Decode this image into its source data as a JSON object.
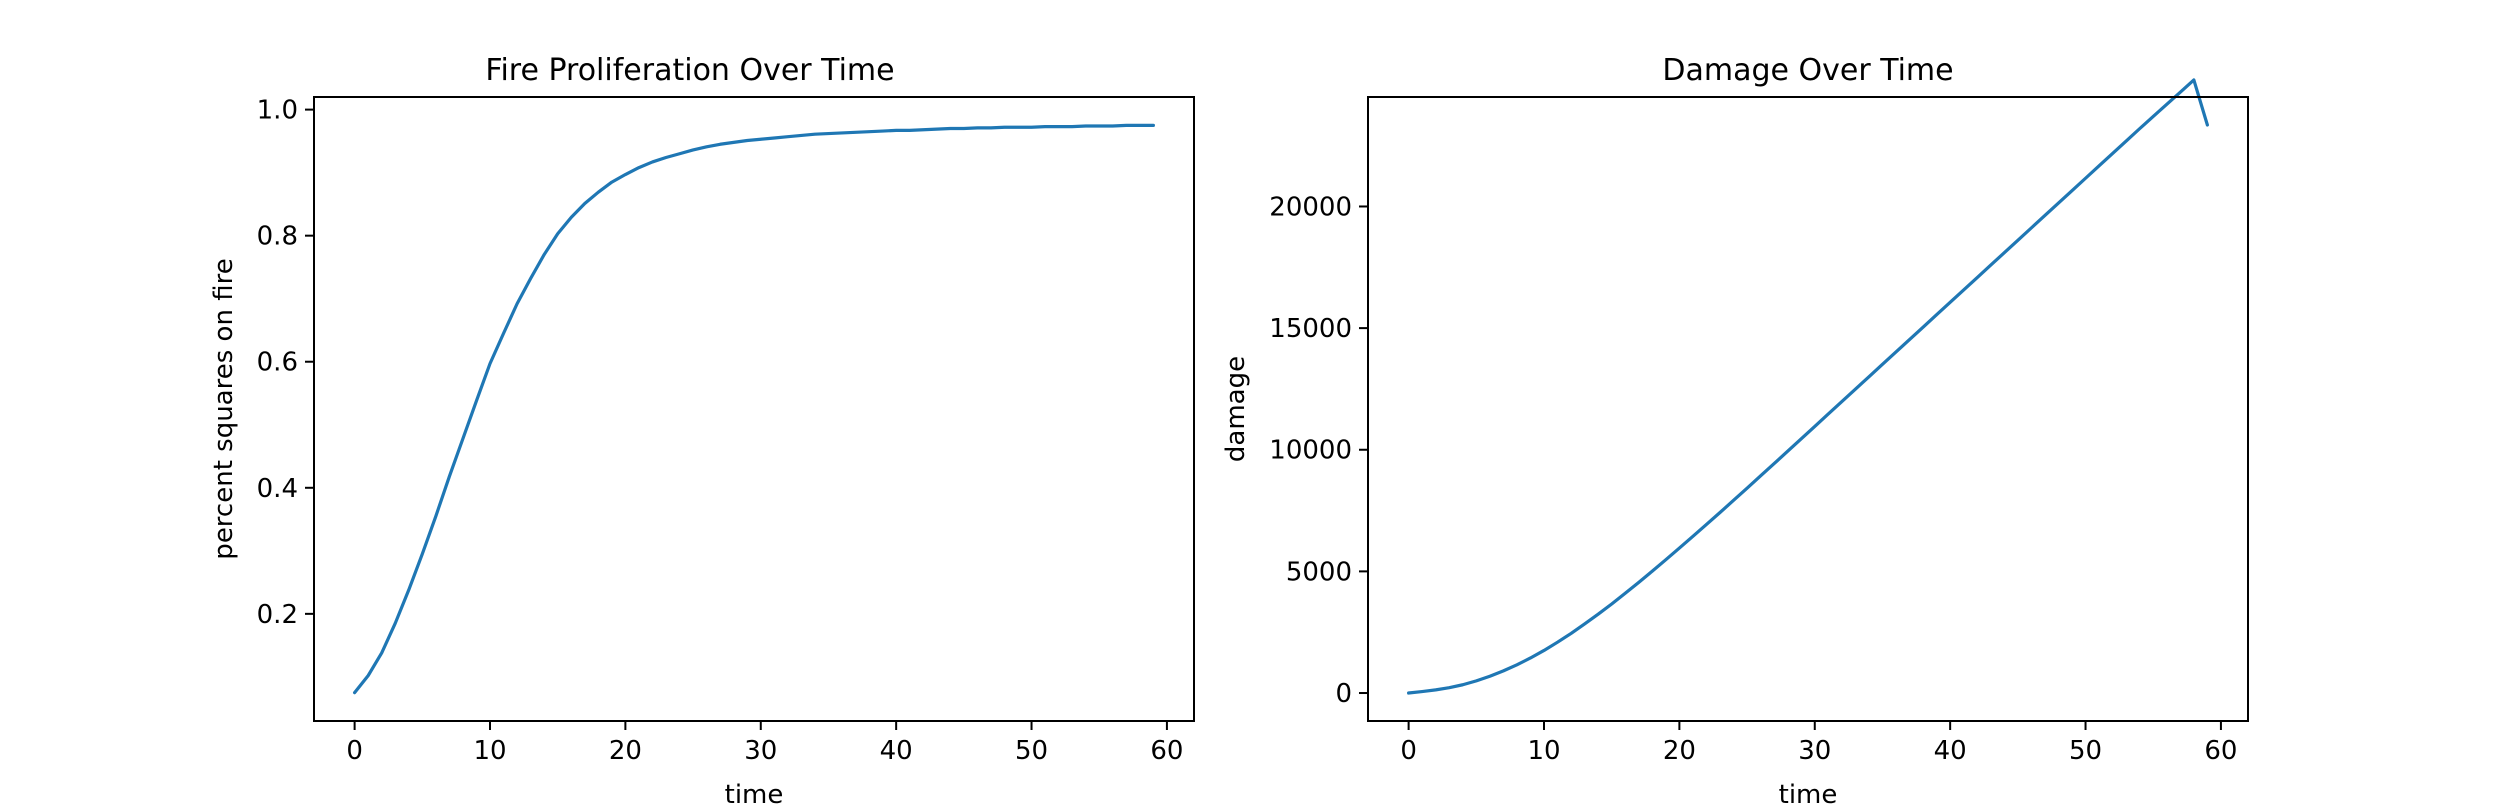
{
  "chart_data": [
    {
      "type": "line",
      "title": "Fire Proliferation Over Time",
      "xlabel": "time",
      "ylabel": "percent squares on fire",
      "xlim": [
        -3,
        62
      ],
      "ylim": [
        0.03,
        1.02
      ],
      "xticks": [
        0,
        10,
        20,
        30,
        40,
        50,
        60
      ],
      "xtick_labels": [
        "0",
        "10",
        "20",
        "30",
        "40",
        "50",
        "60"
      ],
      "yticks": [
        0.2,
        0.4,
        0.6,
        0.8,
        1.0
      ],
      "ytick_labels": [
        "0.2",
        "0.4",
        "0.6",
        "0.8",
        "1.0"
      ],
      "grid": false,
      "line_color": "#1f77b4",
      "series": [
        {
          "x": [
            0,
            1,
            2,
            3,
            4,
            5,
            6,
            7,
            8,
            9,
            10,
            11,
            12,
            13,
            14,
            15,
            16,
            17,
            18,
            19,
            20,
            21,
            22,
            23,
            24,
            25,
            26,
            27,
            28,
            29,
            30,
            31,
            32,
            33,
            34,
            35,
            36,
            37,
            38,
            39,
            40,
            41,
            42,
            43,
            44,
            45,
            46,
            47,
            48,
            49,
            50,
            51,
            52,
            53,
            54,
            55,
            56,
            57,
            58,
            59
          ],
          "values": [
            0.075,
            0.102,
            0.138,
            0.185,
            0.238,
            0.295,
            0.355,
            0.418,
            0.478,
            0.538,
            0.597,
            0.645,
            0.692,
            0.732,
            0.77,
            0.803,
            0.829,
            0.851,
            0.869,
            0.885,
            0.897,
            0.908,
            0.917,
            0.924,
            0.93,
            0.936,
            0.941,
            0.945,
            0.948,
            0.951,
            0.953,
            0.955,
            0.957,
            0.959,
            0.961,
            0.962,
            0.963,
            0.964,
            0.965,
            0.966,
            0.967,
            0.967,
            0.968,
            0.969,
            0.97,
            0.97,
            0.971,
            0.971,
            0.972,
            0.972,
            0.972,
            0.973,
            0.973,
            0.973,
            0.974,
            0.974,
            0.974,
            0.975,
            0.975,
            0.975
          ]
        }
      ]
    },
    {
      "type": "line",
      "title": "Damage Over Time",
      "xlabel": "time",
      "ylabel": "damage",
      "xlim": [
        -3,
        62
      ],
      "ylim": [
        -1150,
        24500
      ],
      "xticks": [
        0,
        10,
        20,
        30,
        40,
        50,
        60
      ],
      "xtick_labels": [
        "0",
        "10",
        "20",
        "30",
        "40",
        "50",
        "60"
      ],
      "yticks": [
        0,
        5000,
        10000,
        15000,
        20000
      ],
      "ytick_labels": [
        "0",
        "5000",
        "10000",
        "15000",
        "20000"
      ],
      "grid": false,
      "line_color": "#1f77b4",
      "series": [
        {
          "x": [
            0,
            1,
            2,
            3,
            4,
            5,
            6,
            7,
            8,
            9,
            10,
            11,
            12,
            13,
            14,
            15,
            16,
            17,
            18,
            19,
            20,
            21,
            22,
            23,
            24,
            25,
            26,
            27,
            28,
            29,
            30,
            31,
            32,
            33,
            34,
            35,
            36,
            37,
            38,
            39,
            40,
            41,
            42,
            43,
            44,
            45,
            46,
            47,
            48,
            49,
            50,
            51,
            52,
            53,
            54,
            55,
            56,
            57,
            58,
            59
          ],
          "values": [
            0,
            60,
            130,
            220,
            340,
            500,
            690,
            910,
            1160,
            1440,
            1750,
            2090,
            2450,
            2840,
            3240,
            3660,
            4100,
            4550,
            5010,
            5480,
            5960,
            6440,
            6930,
            7420,
            7920,
            8420,
            8930,
            9430,
            9940,
            10450,
            10960,
            11470,
            11980,
            12490,
            13000,
            13510,
            14020,
            14530,
            15040,
            15550,
            16060,
            16570,
            17080,
            17590,
            18100,
            18610,
            19120,
            19630,
            20140,
            20650,
            21160,
            21670,
            22180,
            22690,
            23200,
            23700,
            24200,
            24700,
            25200,
            23350
          ]
        }
      ]
    }
  ]
}
